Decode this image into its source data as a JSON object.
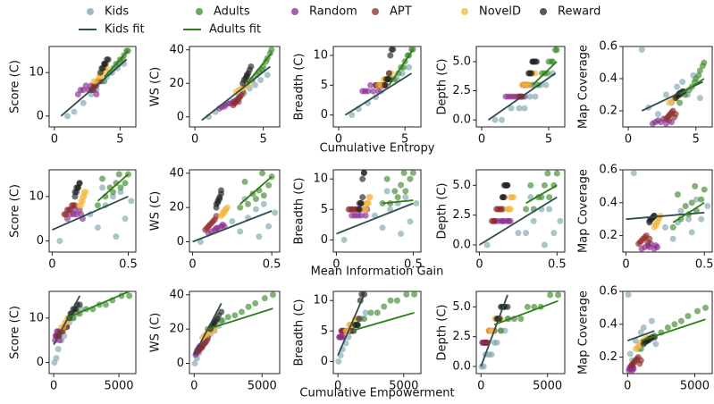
{
  "chart_data": {
    "type": "scatter",
    "rows": [
      {
        "label": "Cumulative Entropy",
        "xlim": [
          -0.4,
          6.2
        ],
        "xticks": [
          0,
          5
        ]
      },
      {
        "label": "Mean Information Gain",
        "xlim": [
          -0.02,
          0.55
        ],
        "xticks": [
          0,
          0.5
        ]
      },
      {
        "label": "Cumulative Empowerment",
        "xlim": [
          -350,
          6300
        ],
        "xticks": [
          0,
          5000
        ]
      }
    ],
    "columns": [
      {
        "label": "Score (C)",
        "ylim": [
          -2.5,
          16
        ],
        "yticks": [
          0,
          10
        ]
      },
      {
        "label": "WS (C)",
        "ylim": [
          -6,
          42
        ],
        "yticks": [
          0,
          20,
          40
        ]
      },
      {
        "label": "Breadth (C)",
        "ylim": [
          -2,
          11.5
        ],
        "yticks": [
          0,
          5,
          10
        ]
      },
      {
        "label": "Depth (C)",
        "ylim": [
          -0.6,
          6.3
        ],
        "yticks": [
          {
            "value": 0,
            "label": "0.0"
          },
          {
            "value": 2.5,
            "label": "2.5"
          },
          {
            "value": 5,
            "label": "5.0"
          }
        ]
      },
      {
        "label": "Map Coverage",
        "ylim": [
          0.1,
          0.6
        ],
        "yticks": [
          0.2,
          0.4,
          0.6
        ]
      }
    ],
    "series": [
      {
        "name": "Kids",
        "color": "#7fa6ad",
        "x": [
          [
            1.0,
            1.5,
            2.2,
            2.8,
            3.2,
            3.6,
            4.0,
            4.4,
            4.8,
            5.3
          ],
          [
            0.05,
            0.42,
            0.3,
            0.48,
            0.25,
            0.35,
            0.52,
            0.4,
            0.45,
            0.33
          ],
          [
            50,
            200,
            350,
            600,
            800,
            1000,
            1200,
            1500,
            1800,
            2100
          ]
        ],
        "y": [
          [
            0,
            1,
            3,
            5,
            6,
            8,
            9,
            10,
            11,
            12
          ],
          [
            0,
            3,
            6,
            9,
            12,
            14,
            17,
            19,
            22,
            25
          ],
          [
            0,
            1,
            2,
            3,
            4,
            5,
            6,
            6,
            7,
            8
          ],
          [
            0,
            0,
            1,
            1,
            1,
            2,
            2,
            3,
            3,
            4
          ],
          [
            0.58,
            0.22,
            0.18,
            0.3,
            0.25,
            0.35,
            0.38,
            0.3,
            0.42,
            0.28
          ]
        ]
      },
      {
        "name": "Adults",
        "color": "#3d8b2c",
        "x": [
          [
            3.8,
            4.2,
            4.5,
            4.7,
            4.9,
            5.0,
            5.2,
            5.3,
            5.5,
            5.6
          ],
          [
            0.3,
            0.35,
            0.4,
            0.45,
            0.38,
            0.42,
            0.48,
            0.33,
            0.5,
            0.44
          ],
          [
            1000,
            1500,
            2000,
            2500,
            3000,
            3500,
            4000,
            4500,
            5200,
            5800
          ]
        ],
        "y": [
          [
            8,
            10,
            11,
            12,
            12,
            13,
            13,
            14,
            15,
            15
          ],
          [
            20,
            22,
            25,
            27,
            28,
            30,
            33,
            35,
            38,
            40
          ],
          [
            6,
            6,
            7,
            8,
            8,
            9,
            10,
            10,
            11,
            11
          ],
          [
            3,
            3,
            4,
            4,
            4,
            5,
            5,
            5,
            6,
            6
          ],
          [
            0.25,
            0.3,
            0.33,
            0.35,
            0.38,
            0.4,
            0.42,
            0.45,
            0.48,
            0.5
          ]
        ]
      },
      {
        "name": "Random",
        "color": "#8a2b8f",
        "x": [
          [
            1.8,
            2.0,
            2.2,
            2.4,
            2.6,
            2.8,
            3.0,
            3.2
          ],
          [
            0.1,
            0.12,
            0.14,
            0.15,
            0.16,
            0.18,
            0.19,
            0.2
          ],
          [
            100,
            150,
            200,
            250,
            300,
            350,
            400,
            450
          ]
        ],
        "y": [
          [
            5,
            6,
            6,
            7,
            6,
            7,
            6,
            5
          ],
          [
            5,
            6,
            7,
            8,
            8,
            9,
            10,
            9
          ],
          [
            4,
            4,
            4,
            5,
            4,
            5,
            4,
            5
          ],
          [
            2,
            2,
            2,
            2,
            2,
            2,
            2,
            2
          ],
          [
            0.12,
            0.13,
            0.14,
            0.13,
            0.15,
            0.12,
            0.14,
            0.13
          ]
        ]
      },
      {
        "name": "APT",
        "color": "#8e2b2b",
        "x": [
          [
            2.8,
            2.9,
            3.0,
            3.1,
            3.2,
            3.3,
            3.4,
            3.5
          ],
          [
            0.08,
            0.09,
            0.1,
            0.11,
            0.12,
            0.13,
            0.14,
            0.15
          ],
          [
            300,
            400,
            500,
            600,
            700,
            800,
            900,
            1000
          ]
        ],
        "y": [
          [
            6,
            6,
            7,
            7,
            7,
            8,
            8,
            8
          ],
          [
            7,
            8,
            9,
            10,
            11,
            12,
            13,
            15
          ],
          [
            5,
            5,
            5,
            5,
            5,
            5,
            5,
            5
          ],
          [
            2,
            2,
            2,
            3,
            3,
            3,
            3,
            3
          ],
          [
            0.15,
            0.16,
            0.17,
            0.18,
            0.19,
            0.2,
            0.16,
            0.18
          ]
        ]
      },
      {
        "name": "NovelD",
        "color": "#f4b73f",
        "x": [
          [
            3.0,
            3.2,
            3.4,
            3.5,
            3.6,
            3.7,
            3.8,
            4.0
          ],
          [
            0.18,
            0.19,
            0.19,
            0.2,
            0.2,
            0.21,
            0.21,
            0.22
          ],
          [
            600,
            750,
            850,
            950,
            1050,
            1150,
            1300,
            1500
          ]
        ],
        "y": [
          [
            8,
            8,
            9,
            9,
            10,
            10,
            11,
            11
          ],
          [
            15,
            16,
            17,
            17,
            18,
            19,
            19,
            20
          ],
          [
            5,
            5,
            6,
            6,
            6,
            6,
            7,
            7
          ],
          [
            3,
            3,
            3,
            3,
            4,
            4,
            4,
            4
          ],
          [
            0.25,
            0.26,
            0.27,
            0.28,
            0.29,
            0.3,
            0.31,
            0.32
          ]
        ]
      },
      {
        "name": "Reward",
        "color": "#222222",
        "x": [
          [
            3.5,
            3.6,
            3.7,
            3.8,
            3.8,
            3.9,
            4.0,
            4.1
          ],
          [
            0.15,
            0.15,
            0.16,
            0.16,
            0.17,
            0.17,
            0.18,
            0.18
          ],
          [
            1200,
            1300,
            1400,
            1500,
            1600,
            1700,
            1800,
            2000
          ]
        ],
        "y": [
          [
            10,
            11,
            11,
            12,
            12,
            12,
            13,
            13
          ],
          [
            20,
            22,
            23,
            24,
            25,
            26,
            28,
            30
          ],
          [
            5,
            6,
            6,
            6,
            7,
            10,
            11,
            11
          ],
          [
            4,
            4,
            4,
            5,
            5,
            5,
            5,
            5
          ],
          [
            0.28,
            0.29,
            0.3,
            0.3,
            0.31,
            0.31,
            0.32,
            0.32
          ]
        ]
      }
    ],
    "fits": [
      {
        "name": "Kids fit",
        "color": "#2f4f4f",
        "lines": [
          [
            {
              "x": [
                0.5,
                5.5
              ],
              "y": [
                0,
                13
              ]
            },
            {
              "x": [
                0.5,
                5.5
              ],
              "y": [
                -2,
                30
              ]
            },
            {
              "x": [
                0.5,
                5.5
              ],
              "y": [
                0,
                7
              ]
            },
            {
              "x": [
                0.5,
                5.5
              ],
              "y": [
                0,
                4
              ]
            },
            {
              "x": [
                1,
                5.5
              ],
              "y": [
                0.2,
                0.38
              ]
            }
          ],
          [
            {
              "x": [
                0,
                0.5
              ],
              "y": [
                2.5,
                10
              ]
            },
            {
              "x": [
                0,
                0.5
              ],
              "y": [
                0,
                18
              ]
            },
            {
              "x": [
                0,
                0.5
              ],
              "y": [
                1,
                6
              ]
            },
            {
              "x": [
                0,
                0.5
              ],
              "y": [
                0,
                4
              ]
            },
            {
              "x": [
                0,
                0.5
              ],
              "y": [
                0.3,
                0.34
              ]
            }
          ],
          [
            {
              "x": [
                0,
                2000
              ],
              "y": [
                4,
                15
              ]
            },
            {
              "x": [
                0,
                2000
              ],
              "y": [
                5,
                35
              ]
            },
            {
              "x": [
                0,
                2000
              ],
              "y": [
                1,
                11
              ]
            },
            {
              "x": [
                0,
                2000
              ],
              "y": [
                0,
                6
              ]
            },
            {
              "x": [
                0,
                2000
              ],
              "y": [
                0.3,
                0.36
              ]
            }
          ]
        ]
      },
      {
        "name": "Adults fit",
        "color": "#2e7d1a",
        "lines": [
          [
            {
              "x": [
                3.8,
                5.6
              ],
              "y": [
                9,
                15
              ]
            },
            {
              "x": [
                3.8,
                5.6
              ],
              "y": [
                20,
                38
              ]
            },
            {
              "x": [
                3.8,
                5.6
              ],
              "y": [
                5,
                11
              ]
            },
            {
              "x": [
                3.8,
                5.6
              ],
              "y": [
                3,
                5
              ]
            },
            {
              "x": [
                3.8,
                5.6
              ],
              "y": [
                0.3,
                0.4
              ]
            }
          ],
          [
            {
              "x": [
                0.3,
                0.5
              ],
              "y": [
                9,
                15
              ]
            },
            {
              "x": [
                0.3,
                0.5
              ],
              "y": [
                22,
                38
              ]
            },
            {
              "x": [
                0.3,
                0.5
              ],
              "y": [
                6,
                6.5
              ]
            },
            {
              "x": [
                0.3,
                0.5
              ],
              "y": [
                3.5,
                5
              ]
            },
            {
              "x": [
                0.3,
                0.5
              ],
              "y": [
                0.28,
                0.4
              ]
            }
          ],
          [
            {
              "x": [
                1000,
                5800
              ],
              "y": [
                10,
                16
              ]
            },
            {
              "x": [
                1000,
                5800
              ],
              "y": [
                20,
                32
              ]
            },
            {
              "x": [
                1000,
                5800
              ],
              "y": [
                5,
                8
              ]
            },
            {
              "x": [
                1000,
                5800
              ],
              "y": [
                3.5,
                5.5
              ]
            },
            {
              "x": [
                1000,
                5800
              ],
              "y": [
                0.3,
                0.43
              ]
            }
          ]
        ]
      }
    ]
  }
}
